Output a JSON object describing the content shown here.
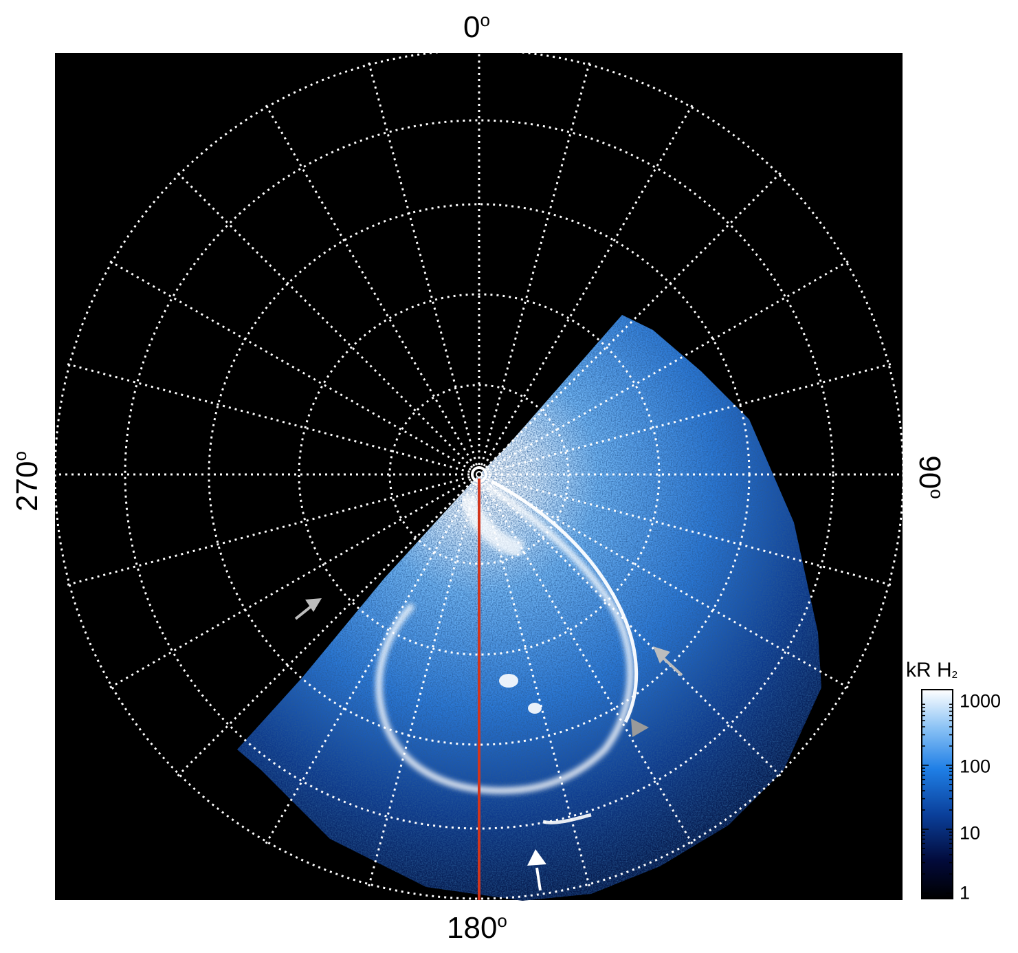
{
  "labels": {
    "top": "0",
    "right": "90",
    "bottom": "180",
    "left": "270",
    "degree_symbol": "o"
  },
  "colorbar": {
    "title": "kR H",
    "title_subscript": "2",
    "ticks": [
      "1000",
      "100",
      "10",
      "1"
    ],
    "scale": "log",
    "range": [
      1,
      1000
    ]
  },
  "colors": {
    "background": "#000000",
    "grid": "#ffffff",
    "aurora_bright": "#ffffff",
    "aurora_mid": "#3d8fe8",
    "aurora_dark": "#08255e",
    "meridian_line": "#d2351c",
    "arrow_grey": "#bdbdbd",
    "arrow_white": "#ffffff"
  },
  "icons": [
    "arrow-grey-1",
    "arrow-grey-2",
    "arrowhead-grey",
    "arrow-white"
  ]
}
